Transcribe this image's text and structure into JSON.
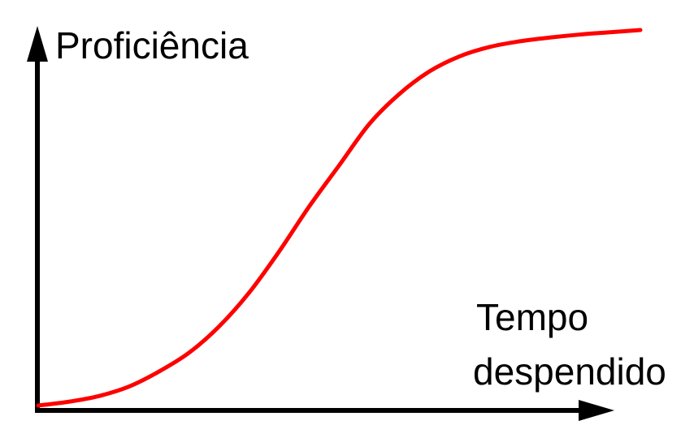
{
  "chart_data": {
    "type": "line",
    "title": "",
    "ylabel": "Proficiência",
    "xlabel_lines": [
      "Tempo",
      "despendido"
    ],
    "xlim": [
      0,
      1
    ],
    "ylim": [
      0,
      1
    ],
    "grid": false,
    "series": [
      {
        "color": "#ff0000",
        "x": [
          0.0,
          0.05,
          0.1,
          0.15,
          0.2,
          0.25,
          0.3,
          0.35,
          0.4,
          0.45,
          0.5,
          0.55,
          0.6,
          0.65,
          0.7,
          0.75,
          0.8,
          0.85,
          0.9,
          0.95,
          1.0
        ],
        "y": [
          0.0,
          0.01,
          0.025,
          0.05,
          0.09,
          0.14,
          0.21,
          0.3,
          0.41,
          0.53,
          0.64,
          0.75,
          0.83,
          0.89,
          0.93,
          0.955,
          0.97,
          0.98,
          0.988,
          0.994,
          1.0
        ]
      }
    ]
  },
  "colors": {
    "axis": "#000000",
    "curve": "#ff0000"
  }
}
